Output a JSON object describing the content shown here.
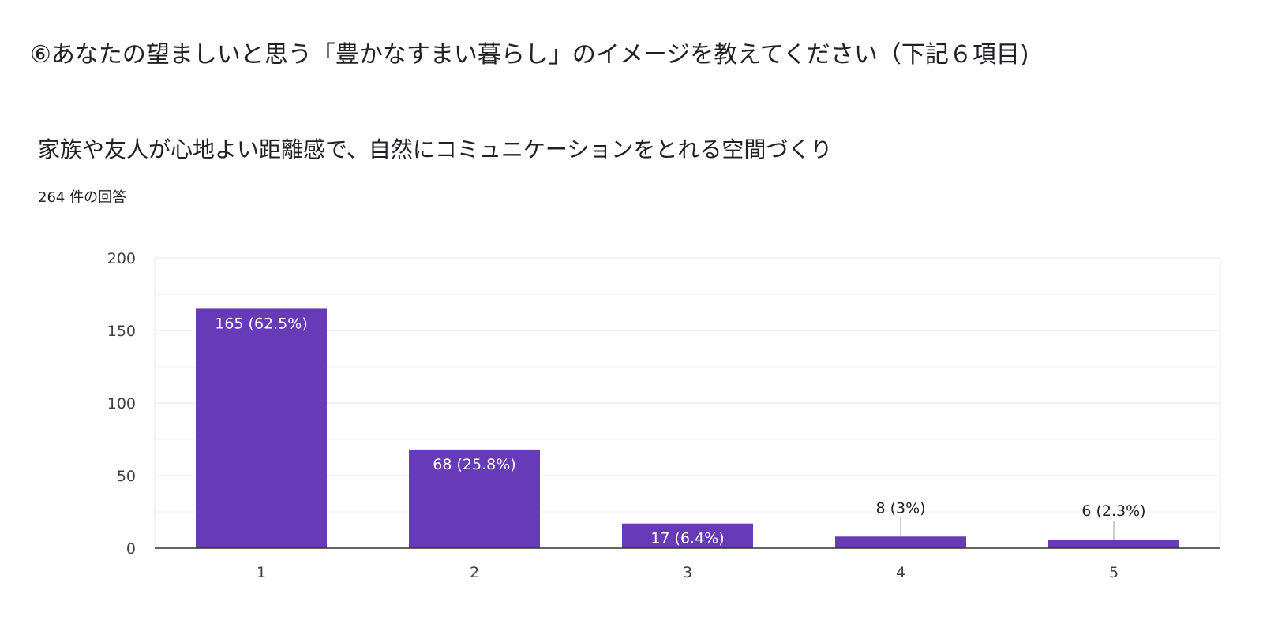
{
  "header": {
    "title": "⑥あなたの望ましいと思う「豊かなすまい暮らし」のイメージを教えてください（下記６項目)",
    "question": "家族や友人が心地よい距離感で、自然にコミュニケーションをとれる空間づくり",
    "response_count": "264 件の回答"
  },
  "chart_data": {
    "type": "bar",
    "categories": [
      "1",
      "2",
      "3",
      "4",
      "5"
    ],
    "values": [
      165,
      68,
      17,
      8,
      6
    ],
    "data_labels": [
      "165 (62.5%)",
      "68 (25.8%)",
      "17 (6.4%)",
      "8 (3%)",
      "6 (2.3%)"
    ],
    "yticks": [
      "0",
      "50",
      "100",
      "150",
      "200"
    ],
    "ylim": [
      0,
      200
    ],
    "grid": true,
    "bar_color": "#673ab7"
  }
}
